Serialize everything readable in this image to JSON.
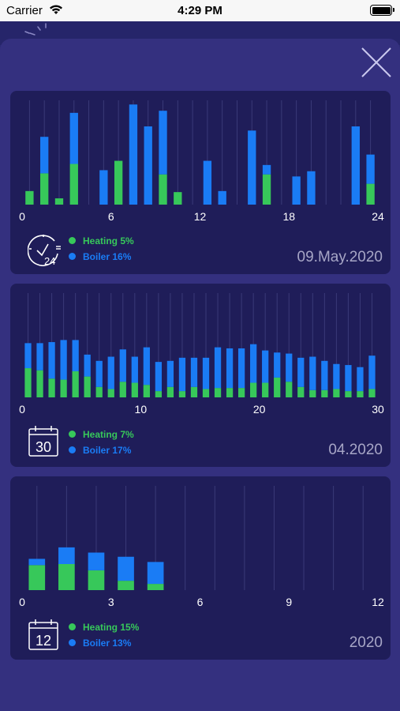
{
  "status_bar": {
    "carrier": "Carrier",
    "time": "4:29 PM"
  },
  "icons": {
    "close": "close-icon",
    "backdrop": "sun-icon",
    "day": "clock-24h-icon",
    "month": "calendar-30-icon",
    "year": "calendar-12-icon"
  },
  "colors": {
    "heating": "#37c85a",
    "boiler": "#1a7cf5",
    "card": "#1f1d59",
    "sheet": "#34307f"
  },
  "cards": [
    {
      "icon_label": "24",
      "heating_label": "Heating 5%",
      "boiler_label": "Boiler 16%",
      "period": "09.May.2020"
    },
    {
      "icon_label": "30",
      "heating_label": "Heating 7%",
      "boiler_label": "Boiler 17%",
      "period": "04.2020"
    },
    {
      "icon_label": "12",
      "heating_label": "Heating 15%",
      "boiler_label": "Boiler 13%",
      "period": "2020"
    }
  ],
  "chart_data": [
    {
      "type": "bar",
      "stacked": true,
      "title": "",
      "x": [
        1,
        2,
        3,
        4,
        5,
        6,
        7,
        8,
        9,
        10,
        11,
        12,
        13,
        14,
        15,
        16,
        17,
        18,
        19,
        20,
        21,
        22,
        23,
        24
      ],
      "xticks": [
        "0",
        "6",
        "12",
        "18",
        "24"
      ],
      "xlim": [
        0,
        24
      ],
      "ylim": [
        0,
        100
      ],
      "grid": true,
      "series": [
        {
          "name": "Heating",
          "values": [
            13,
            30,
            6,
            39,
            0,
            0,
            42,
            0,
            0,
            29,
            12,
            0,
            0,
            0,
            0,
            0,
            29,
            0,
            0,
            0,
            0,
            0,
            0,
            20
          ]
        },
        {
          "name": "Boiler",
          "values": [
            0,
            35,
            0,
            49,
            0,
            33,
            0,
            96,
            75,
            61,
            0,
            0,
            42,
            13,
            0,
            71,
            9,
            0,
            27,
            32,
            0,
            0,
            75,
            28
          ]
        }
      ]
    },
    {
      "type": "bar",
      "stacked": true,
      "title": "",
      "x": [
        1,
        2,
        3,
        4,
        5,
        6,
        7,
        8,
        9,
        10,
        11,
        12,
        13,
        14,
        15,
        16,
        17,
        18,
        19,
        20,
        21,
        22,
        23,
        24,
        25,
        26,
        27,
        28,
        29,
        30
      ],
      "xticks": [
        "0",
        "10",
        "20",
        "30"
      ],
      "xlim": [
        0,
        30
      ],
      "ylim": [
        0,
        100
      ],
      "grid": true,
      "series": [
        {
          "name": "Heating",
          "values": [
            28,
            26,
            18,
            17,
            25,
            20,
            10,
            8,
            15,
            14,
            12,
            6,
            10,
            6,
            10,
            8,
            9,
            9,
            9,
            14,
            14,
            19,
            15,
            10,
            7,
            7,
            8,
            6,
            6,
            8
          ]
        },
        {
          "name": "Boiler",
          "values": [
            24,
            26,
            35,
            38,
            30,
            21,
            25,
            31,
            31,
            25,
            36,
            28,
            25,
            32,
            28,
            30,
            39,
            38,
            38,
            37,
            31,
            24,
            27,
            28,
            32,
            28,
            24,
            25,
            23,
            32
          ]
        }
      ]
    },
    {
      "type": "bar",
      "stacked": true,
      "title": "",
      "x": [
        1,
        2,
        3,
        4,
        5,
        6,
        7,
        8,
        9,
        10,
        11,
        12
      ],
      "xticks": [
        "0",
        "3",
        "6",
        "9",
        "12"
      ],
      "xlim": [
        0,
        12
      ],
      "ylim": [
        0,
        100
      ],
      "grid": true,
      "series": [
        {
          "name": "Heating",
          "values": [
            24,
            25,
            19,
            9,
            6,
            0,
            0,
            0,
            0,
            0,
            0,
            0
          ]
        },
        {
          "name": "Boiler",
          "values": [
            6,
            16,
            17,
            23,
            21,
            0,
            0,
            0,
            0,
            0,
            0,
            0
          ]
        }
      ]
    }
  ]
}
